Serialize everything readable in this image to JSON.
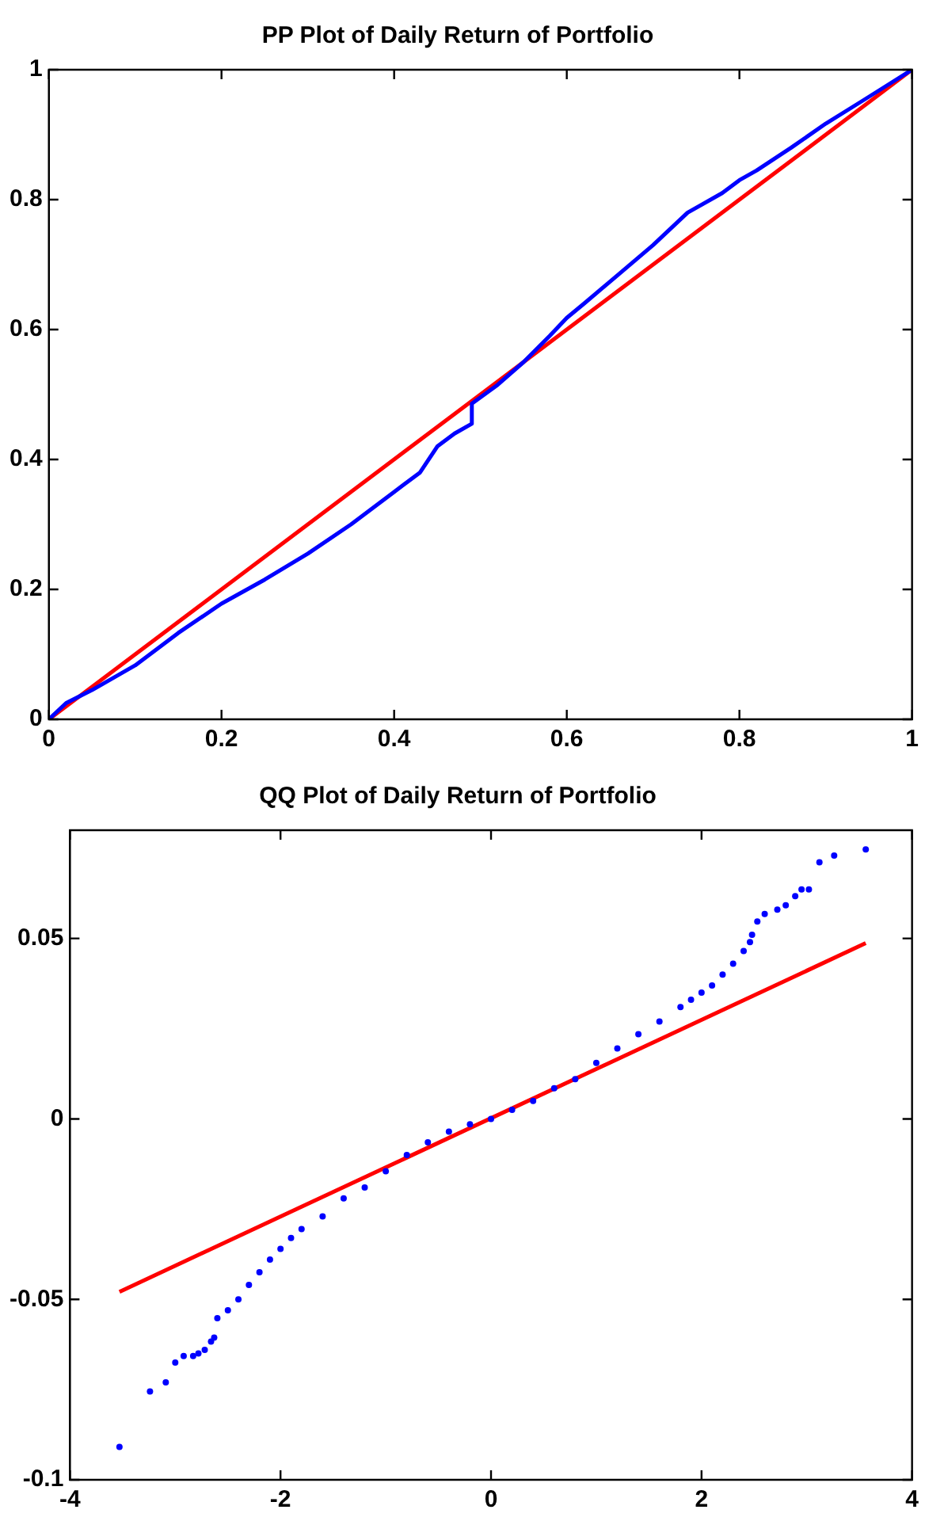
{
  "chart_data": [
    {
      "type": "line",
      "title": "PP Plot of Daily Return of Portfolio",
      "xlim": [
        0,
        1
      ],
      "ylim": [
        0,
        1
      ],
      "xticks": [
        0,
        0.2,
        0.4,
        0.6,
        0.8,
        1
      ],
      "yticks": [
        0,
        0.2,
        0.4,
        0.6,
        0.8,
        1
      ],
      "grid": false,
      "series": [
        {
          "color": "#0000ff",
          "x": [
            0,
            0.02,
            0.05,
            0.1,
            0.15,
            0.2,
            0.25,
            0.3,
            0.35,
            0.4,
            0.43,
            0.45,
            0.47,
            0.49,
            0.49,
            0.52,
            0.55,
            0.58,
            0.6,
            0.62,
            0.66,
            0.7,
            0.74,
            0.78,
            0.8,
            0.82,
            0.86,
            0.9,
            0.94,
            0.97,
            1
          ],
          "values": [
            0,
            0.025,
            0.045,
            0.083,
            0.133,
            0.178,
            0.215,
            0.255,
            0.3,
            0.35,
            0.38,
            0.42,
            0.44,
            0.455,
            0.486,
            0.515,
            0.55,
            0.59,
            0.618,
            0.64,
            0.685,
            0.73,
            0.78,
            0.81,
            0.83,
            0.845,
            0.88,
            0.917,
            0.95,
            0.975,
            1
          ]
        },
        {
          "color": "#ff0000",
          "x": [
            0,
            1
          ],
          "values": [
            0,
            1
          ]
        }
      ]
    },
    {
      "type": "scatter",
      "title": "QQ Plot of Daily Return of Portfolio",
      "xlim": [
        -4,
        4
      ],
      "ylim": [
        -0.1,
        0.08
      ],
      "xticks": [
        -4,
        -2,
        0,
        2,
        4
      ],
      "yticks": [
        -0.1,
        -0.05,
        0,
        0.05
      ],
      "grid": false,
      "series": [
        {
          "color": "#0000ff",
          "marker": "circle",
          "x": [
            -3.53,
            -3.24,
            -3.09,
            -3.0,
            -2.92,
            -2.83,
            -2.78,
            -2.72,
            -2.66,
            -2.63,
            -2.6,
            -2.5,
            -2.4,
            -2.3,
            -2.2,
            -2.1,
            -2.0,
            -1.9,
            -1.8,
            -1.6,
            -1.4,
            -1.2,
            -1.0,
            -0.8,
            -0.6,
            -0.4,
            -0.2,
            0,
            0.2,
            0.4,
            0.6,
            0.8,
            1.0,
            1.2,
            1.4,
            1.6,
            1.8,
            1.9,
            2.0,
            2.1,
            2.2,
            2.3,
            2.4,
            2.46,
            2.48,
            2.53,
            2.6,
            2.72,
            2.8,
            2.89,
            2.95,
            3.02,
            3.12,
            3.26,
            3.56
          ],
          "values": [
            -0.0909,
            -0.0755,
            -0.073,
            -0.0675,
            -0.0657,
            -0.0657,
            -0.065,
            -0.064,
            -0.0617,
            -0.0606,
            -0.0552,
            -0.053,
            -0.05,
            -0.046,
            -0.0425,
            -0.039,
            -0.036,
            -0.033,
            -0.0305,
            -0.027,
            -0.022,
            -0.019,
            -0.0145,
            -0.01,
            -0.0065,
            -0.0035,
            -0.0015,
            0,
            0.0025,
            0.005,
            0.0085,
            0.011,
            0.0155,
            0.0195,
            0.0235,
            0.027,
            0.031,
            0.033,
            0.035,
            0.037,
            0.04,
            0.043,
            0.0465,
            0.049,
            0.051,
            0.0547,
            0.0568,
            0.058,
            0.0592,
            0.0617,
            0.0636,
            0.0636,
            0.0711,
            0.073,
            0.0747
          ]
        },
        {
          "type": "line",
          "color": "#ff0000",
          "x": [
            -3.53,
            3.56
          ],
          "values": [
            -0.0479,
            0.0487
          ]
        }
      ]
    }
  ]
}
